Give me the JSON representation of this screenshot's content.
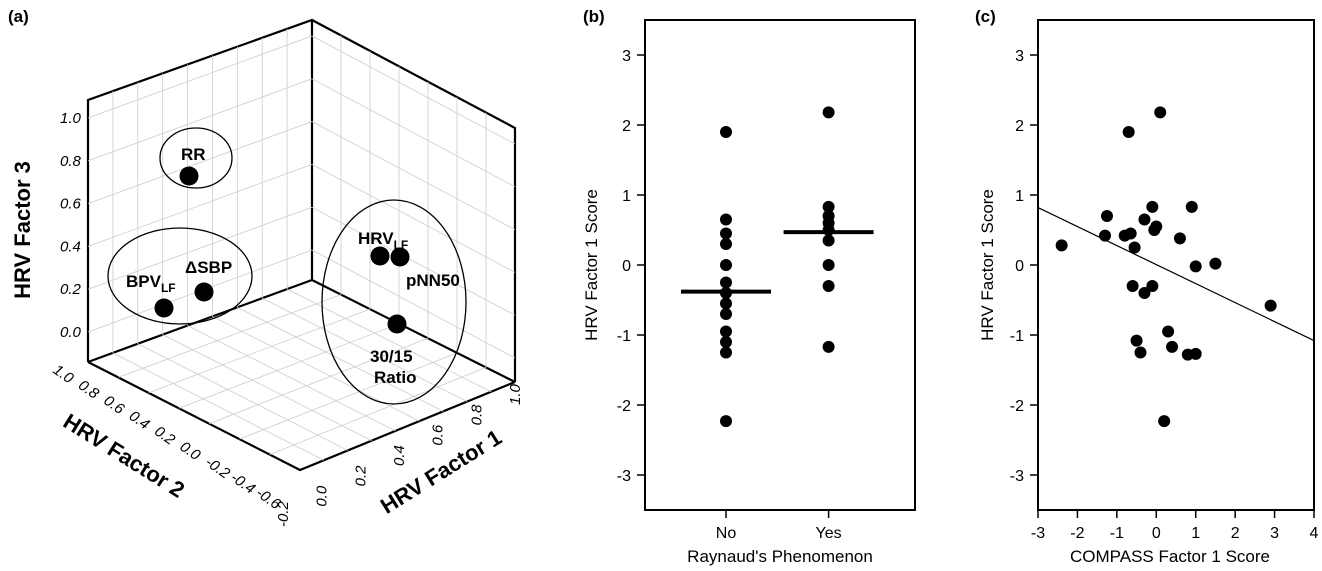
{
  "chart_data": [
    {
      "panel": "(a)",
      "type": "scatter",
      "axes_3d": {
        "x_label": "HRV Factor 1",
        "y_label": "HRV Factor 2",
        "z_label": "HRV Factor 3",
        "x_ticks": [
          "-0.2",
          "0.0",
          "0.2",
          "0.4",
          "0.6",
          "0.8",
          "1.0"
        ],
        "y_ticks": [
          "-0.6",
          "-0.4",
          "-0.2",
          "0.0",
          "0.2",
          "0.4",
          "0.6",
          "0.8",
          "1.0"
        ],
        "z_ticks": [
          "0.0",
          "0.2",
          "0.4",
          "0.6",
          "0.8",
          "1.0"
        ]
      },
      "points": [
        {
          "label": "RR",
          "x": -0.1,
          "y": 0.7,
          "z": 0.95
        },
        {
          "label": "ΔSBP",
          "x": -0.05,
          "y": 0.65,
          "z": 0.25
        },
        {
          "label": "BPV",
          "sub": "LF",
          "x": -0.15,
          "y": 0.85,
          "z": 0.15
        },
        {
          "label": "HRV",
          "sub": "LF",
          "x": 0.85,
          "y": -0.1,
          "z": 0.45
        },
        {
          "label": "pNN50",
          "x": 0.9,
          "y": -0.15,
          "z": 0.45
        },
        {
          "label": "30/15 Ratio",
          "label_line1": "30/15",
          "label_line2": "Ratio",
          "x": 0.8,
          "y": -0.2,
          "z": 0.25
        }
      ]
    },
    {
      "panel": "(b)",
      "type": "scatter",
      "xlabel": "Raynaud's Phenomenon",
      "ylabel": "HRV Factor 1 Score",
      "categories": [
        "No",
        "Yes"
      ],
      "ylim": [
        -3.5,
        3.5
      ],
      "yticks": [
        -3,
        -2,
        -1,
        0,
        1,
        2,
        3
      ],
      "series": [
        {
          "category": "No",
          "values": [
            1.9,
            0.65,
            0.45,
            0.3,
            0.0,
            -0.25,
            -0.4,
            -0.55,
            -0.7,
            -0.95,
            -1.1,
            -1.25,
            -2.23
          ],
          "mean": -0.38
        },
        {
          "category": "Yes",
          "values": [
            2.18,
            0.83,
            0.7,
            0.6,
            0.5,
            0.35,
            0.0,
            -0.3,
            -1.17
          ],
          "mean": 0.47
        }
      ]
    },
    {
      "panel": "(c)",
      "type": "scatter",
      "xlabel": "COMPASS  Factor 1 Score",
      "ylabel": "HRV  Factor 1  Score",
      "xlim": [
        -3,
        4
      ],
      "ylim": [
        -3.5,
        3.5
      ],
      "xticks": [
        -3,
        -2,
        -1,
        0,
        1,
        2,
        3,
        4
      ],
      "yticks": [
        -3,
        -2,
        -1,
        0,
        1,
        2,
        3
      ],
      "points": [
        {
          "x": -2.4,
          "y": 0.28
        },
        {
          "x": -1.25,
          "y": 0.7
        },
        {
          "x": -1.3,
          "y": 0.42
        },
        {
          "x": -0.8,
          "y": 0.42
        },
        {
          "x": -0.65,
          "y": 0.45
        },
        {
          "x": -0.55,
          "y": 0.25
        },
        {
          "x": -0.7,
          "y": 1.9
        },
        {
          "x": -0.3,
          "y": 0.65
        },
        {
          "x": -0.1,
          "y": 0.83
        },
        {
          "x": 0.0,
          "y": 0.55
        },
        {
          "x": -0.05,
          "y": 0.5
        },
        {
          "x": 0.1,
          "y": 2.18
        },
        {
          "x": -0.6,
          "y": -0.3
        },
        {
          "x": -0.3,
          "y": -0.4
        },
        {
          "x": -0.1,
          "y": -0.3
        },
        {
          "x": -0.5,
          "y": -1.08
        },
        {
          "x": -0.4,
          "y": -1.25
        },
        {
          "x": 0.3,
          "y": -0.95
        },
        {
          "x": 0.4,
          "y": -1.17
        },
        {
          "x": 0.8,
          "y": -1.28
        },
        {
          "x": 1.0,
          "y": -1.27
        },
        {
          "x": 0.2,
          "y": -2.23
        },
        {
          "x": 0.6,
          "y": 0.38
        },
        {
          "x": 0.9,
          "y": 0.83
        },
        {
          "x": 1.0,
          "y": -0.02
        },
        {
          "x": 1.5,
          "y": 0.02
        },
        {
          "x": 2.9,
          "y": -0.58
        }
      ],
      "regression": {
        "x1": -3,
        "y1": 0.82,
        "x2": 4,
        "y2": -1.08
      }
    }
  ]
}
